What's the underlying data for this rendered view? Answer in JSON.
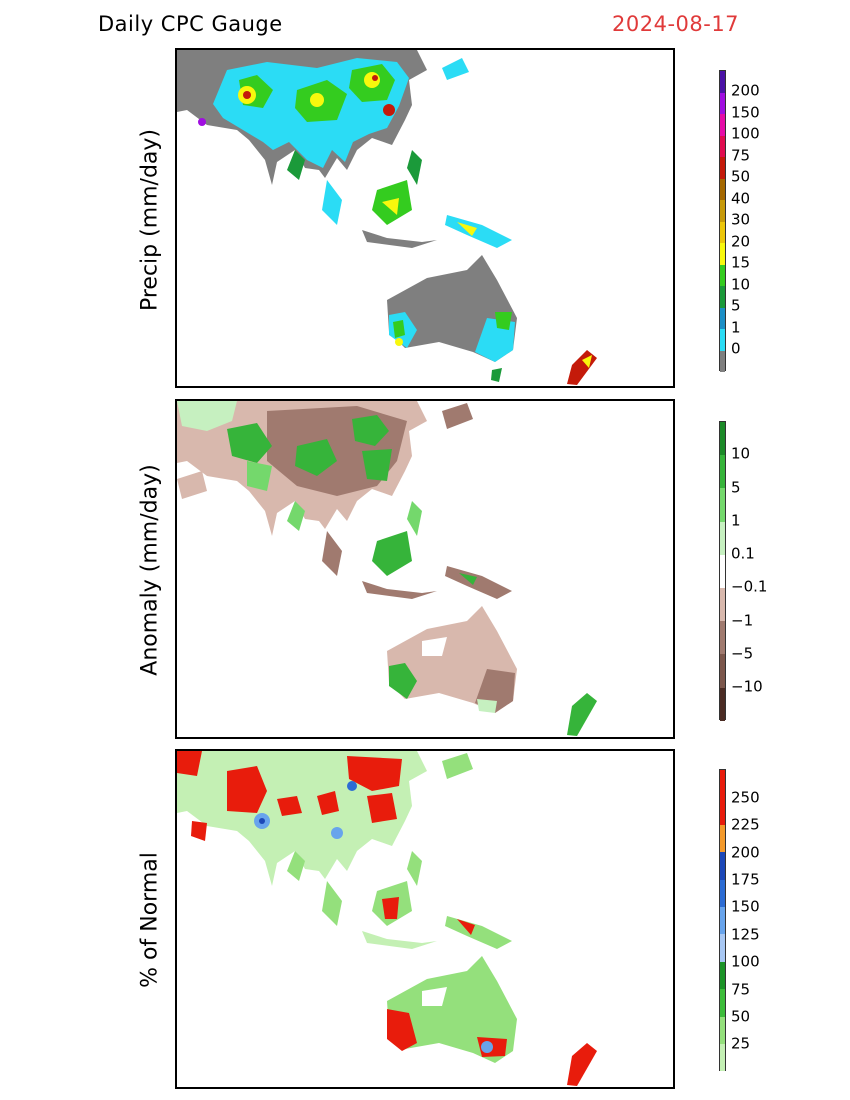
{
  "header": {
    "title": "Daily CPC Gauge",
    "date": "2024-08-17",
    "date_color": "#e03a3a"
  },
  "panels": [
    {
      "ylabel": "Precip (mm/day)",
      "colorbar": [
        {
          "label": "",
          "color": "#7f7f7f"
        },
        {
          "label": "0",
          "color": "#2bdcf5"
        },
        {
          "label": "1",
          "color": "#1b8fc6"
        },
        {
          "label": "5",
          "color": "#1b9a3a"
        },
        {
          "label": "10",
          "color": "#34cc1f"
        },
        {
          "label": "15",
          "color": "#f8f80d"
        },
        {
          "label": "20",
          "color": "#ecc60a"
        },
        {
          "label": "30",
          "color": "#c79a0a"
        },
        {
          "label": "40",
          "color": "#a56800"
        },
        {
          "label": "50",
          "color": "#c41a0a"
        },
        {
          "label": "75",
          "color": "#e00c50"
        },
        {
          "label": "100",
          "color": "#e60ca8"
        },
        {
          "label": "150",
          "color": "#a00ee0"
        },
        {
          "label": "200",
          "color": "#4a12a6"
        }
      ]
    },
    {
      "ylabel": "Anomaly (mm/day)",
      "colorbar": [
        {
          "label": "",
          "color": "#4b2c24"
        },
        {
          "label": "−10",
          "color": "#7c574c"
        },
        {
          "label": "−5",
          "color": "#a07a6f"
        },
        {
          "label": "−1",
          "color": "#d8b8ad"
        },
        {
          "label": "−0.1",
          "color": "#ffffff"
        },
        {
          "label": "0.1",
          "color": "#c6f0c0"
        },
        {
          "label": "1",
          "color": "#74d86c"
        },
        {
          "label": "5",
          "color": "#36b43a"
        },
        {
          "label": "10",
          "color": "#1c8a28"
        }
      ]
    },
    {
      "ylabel": "% of Normal",
      "colorbar": [
        {
          "label": "25",
          "color": "#c4f0b4"
        },
        {
          "label": "50",
          "color": "#94e07c"
        },
        {
          "label": "75",
          "color": "#3cbc3a"
        },
        {
          "label": "100",
          "color": "#1c9428"
        },
        {
          "label": "125",
          "color": "#a8c8f4"
        },
        {
          "label": "150",
          "color": "#68a4ec"
        },
        {
          "label": "175",
          "color": "#2c6cd4"
        },
        {
          "label": "200",
          "color": "#1c48b8"
        },
        {
          "label": "225",
          "color": "#f49a2c"
        },
        {
          "label": "250",
          "color": "#e81c0c"
        },
        {
          "label": "",
          "color": "#e81c0c"
        }
      ]
    }
  ]
}
